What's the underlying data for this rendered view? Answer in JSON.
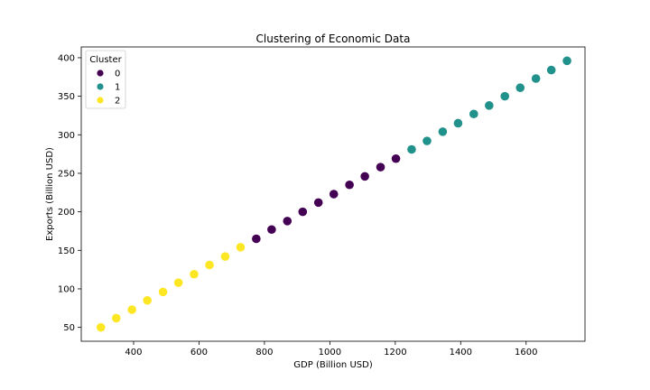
{
  "chart_data": {
    "type": "scatter",
    "title": "Clustering of Economic Data",
    "xlabel": "GDP (Billion USD)",
    "ylabel": "Exports (Billion USD)",
    "xlim": [
      240,
      1780
    ],
    "ylim": [
      32,
      414
    ],
    "xticks": [
      400,
      600,
      800,
      1000,
      1200,
      1400,
      1600
    ],
    "yticks": [
      50,
      100,
      150,
      200,
      250,
      300,
      350,
      400
    ],
    "grid": false,
    "legend": {
      "title": "Cluster",
      "placement": "top-left"
    },
    "series": [
      {
        "name": "0",
        "color": "#440154",
        "x": [
          775,
          822,
          870,
          917,
          965,
          1012,
          1060,
          1107,
          1155,
          1202
        ],
        "y": [
          165,
          177,
          188,
          200,
          212,
          223,
          235,
          246,
          258,
          269
        ]
      },
      {
        "name": "1",
        "color": "#21918c",
        "x": [
          1250,
          1297,
          1345,
          1392,
          1440,
          1487,
          1535,
          1582,
          1630,
          1677,
          1725
        ],
        "y": [
          281,
          292,
          304,
          315,
          327,
          338,
          350,
          361,
          373,
          384,
          396
        ]
      },
      {
        "name": "2",
        "color": "#fde725",
        "x": [
          300,
          347,
          395,
          442,
          490,
          537,
          585,
          632,
          680,
          727
        ],
        "y": [
          50,
          62,
          73,
          85,
          96,
          108,
          119,
          131,
          142,
          154
        ]
      }
    ]
  }
}
